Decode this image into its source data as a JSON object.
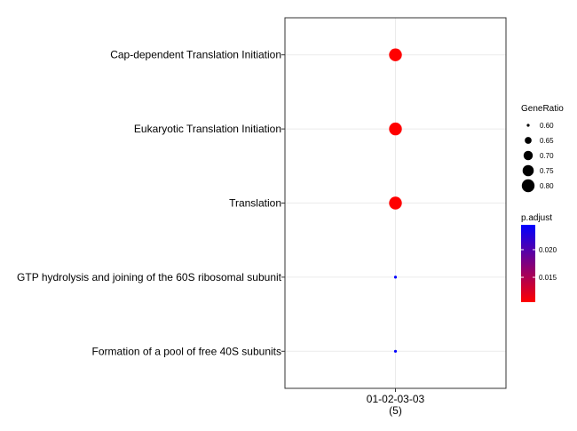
{
  "chart_data": {
    "type": "scatter",
    "categories": [
      "Cap-dependent Translation Initiation",
      "Eukaryotic Translation Initiation",
      "Translation",
      "GTP hydrolysis and joining of the 60S ribosomal subunit",
      "Formation of a pool of free 40S subunits"
    ],
    "x_categories": [
      "01-02-03-03\n(5)"
    ],
    "points": [
      {
        "x": "01-02-03-03\n(5)",
        "y": "Cap-dependent Translation Initiation",
        "gene_ratio": 0.8,
        "p_adjust": 0.0105
      },
      {
        "x": "01-02-03-03\n(5)",
        "y": "Eukaryotic Translation Initiation",
        "gene_ratio": 0.8,
        "p_adjust": 0.0105
      },
      {
        "x": "01-02-03-03\n(5)",
        "y": "Translation",
        "gene_ratio": 0.8,
        "p_adjust": 0.0105
      },
      {
        "x": "01-02-03-03\n(5)",
        "y": "GTP hydrolysis and joining of the 60S ribosomal subunit",
        "gene_ratio": 0.6,
        "p_adjust": 0.0245
      },
      {
        "x": "01-02-03-03\n(5)",
        "y": "Formation of a pool of free 40S subunits",
        "gene_ratio": 0.6,
        "p_adjust": 0.0245
      }
    ],
    "title": "",
    "xlabel": "",
    "ylabel": "",
    "grid": true,
    "legend_placement": "right",
    "size_legend": {
      "title": "GeneRatio",
      "entries": [
        {
          "label": "0.60",
          "value": 0.6
        },
        {
          "label": "0.65",
          "value": 0.65
        },
        {
          "label": "0.70",
          "value": 0.7
        },
        {
          "label": "0.75",
          "value": 0.75
        },
        {
          "label": "0.80",
          "value": 0.8
        }
      ]
    },
    "color_legend": {
      "title": "p.adjust",
      "range": [
        0.0105,
        0.0245
      ],
      "low_color": "#ff0000",
      "high_color": "#0000ff",
      "ticks": [
        {
          "label": "0.020",
          "value": 0.02
        },
        {
          "label": "0.015",
          "value": 0.015
        }
      ]
    },
    "colors": {
      "panel_border": "#333333",
      "grid": "#ebebeb",
      "text": "#000000"
    }
  }
}
